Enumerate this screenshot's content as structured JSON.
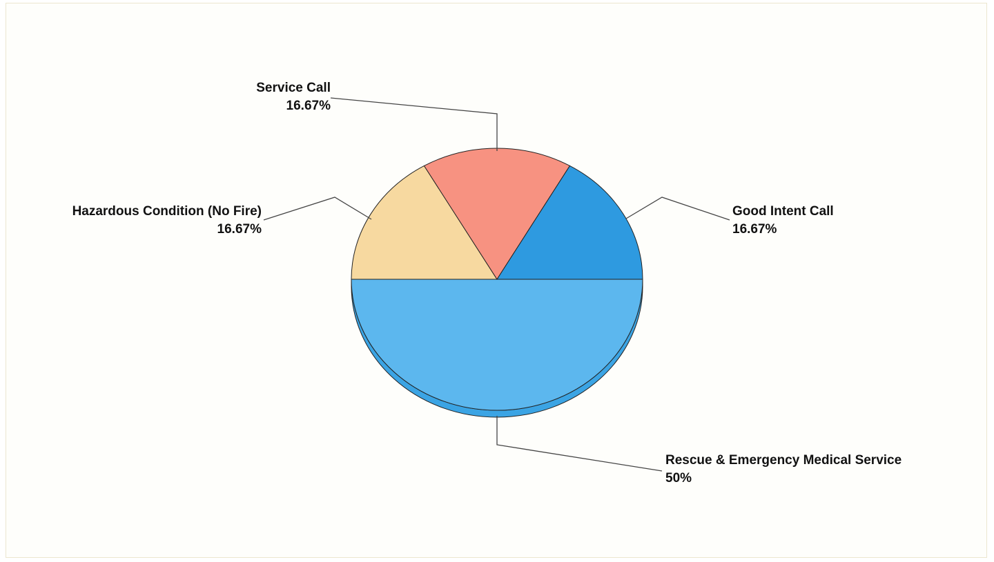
{
  "chart_data": {
    "type": "pie",
    "title": "",
    "slices": [
      {
        "label": "Rescue & Emergency Medical Service",
        "value": 50,
        "percent_label": "50%",
        "color": "#5cb7ee",
        "side_color": "#3ba4e4"
      },
      {
        "label": "Hazardous Condition (No Fire)",
        "value": 16.67,
        "percent_label": "16.67%",
        "color": "#f7d9a0",
        "side_color": "#e6c486"
      },
      {
        "label": "Service Call",
        "value": 16.67,
        "percent_label": "16.67%",
        "color": "#f79281",
        "side_color": "#e27a6a"
      },
      {
        "label": "Good Intent Call",
        "value": 16.67,
        "percent_label": "16.67%",
        "color": "#2e9ae0",
        "side_color": "#1f86c9"
      }
    ],
    "legend": "none",
    "labels": "outside-with-leader-lines"
  }
}
